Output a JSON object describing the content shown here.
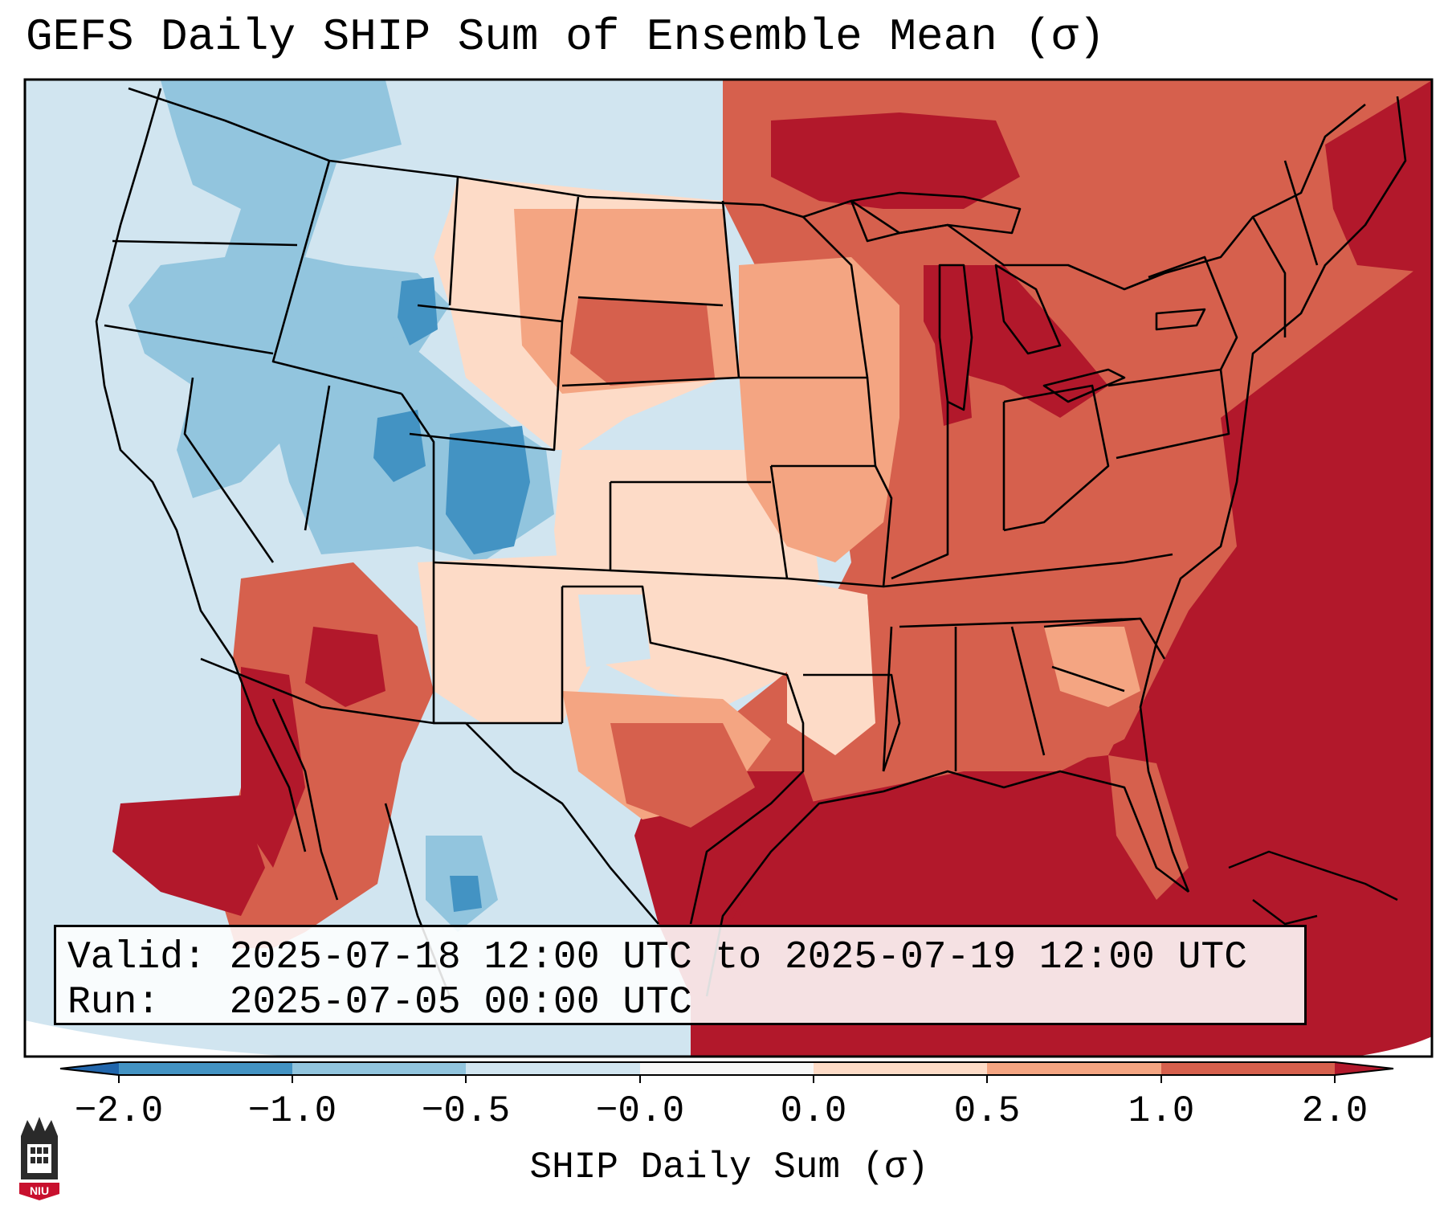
{
  "title": "GEFS Daily SHIP Sum of Ensemble Mean (σ)",
  "validity": {
    "valid_line": "Valid: 2025-07-18 12:00 UTC to 2025-07-19 12:00 UTC",
    "run_line": "Run:   2025-07-05 00:00 UTC"
  },
  "colorbar": {
    "label": "SHIP Daily Sum (σ)",
    "ticks": [
      "−2.0",
      "−1.0",
      "−0.5",
      "−0.0",
      "0.0",
      "0.5",
      "1.0",
      "2.0"
    ],
    "bins": [
      {
        "range": "< -2.0",
        "color": "#2166ac"
      },
      {
        "range": "-2.0 to -1.0",
        "color": "#4393c3"
      },
      {
        "range": "-1.0 to -0.5",
        "color": "#92c5de"
      },
      {
        "range": "-0.5 to -0.0",
        "color": "#d1e5f0"
      },
      {
        "range": "-0.0 to 0.0",
        "color": "#f7f7f7"
      },
      {
        "range": "0.0 to 0.5",
        "color": "#fddbc7"
      },
      {
        "range": "0.5 to 1.0",
        "color": "#f4a582"
      },
      {
        "range": "1.0 to 2.0",
        "color": "#d6604d"
      },
      {
        "range": "> 2.0",
        "color": "#b2182b"
      }
    ]
  },
  "map": {
    "region": "CONUS",
    "field": "SHIP daily sum anomaly (sigma)",
    "regions_summary": [
      {
        "area": "Pacific Northwest / Great Basin",
        "category": "-1.0 to -0.5"
      },
      {
        "area": "Colorado / Utah core",
        "category": "-2.0 to -1.0"
      },
      {
        "area": "Northern Plains",
        "category": "0.0 to 0.5"
      },
      {
        "area": "Upper Midwest / Great Lakes",
        "category": "> 2.0"
      },
      {
        "area": "Southeast / Gulf Coast",
        "category": "> 2.0"
      },
      {
        "area": "Atlantic Ocean",
        "category": "> 2.0"
      },
      {
        "area": "Desert Southwest",
        "category": "1.0 to 2.0"
      }
    ]
  },
  "logo": {
    "text": "NIU"
  }
}
